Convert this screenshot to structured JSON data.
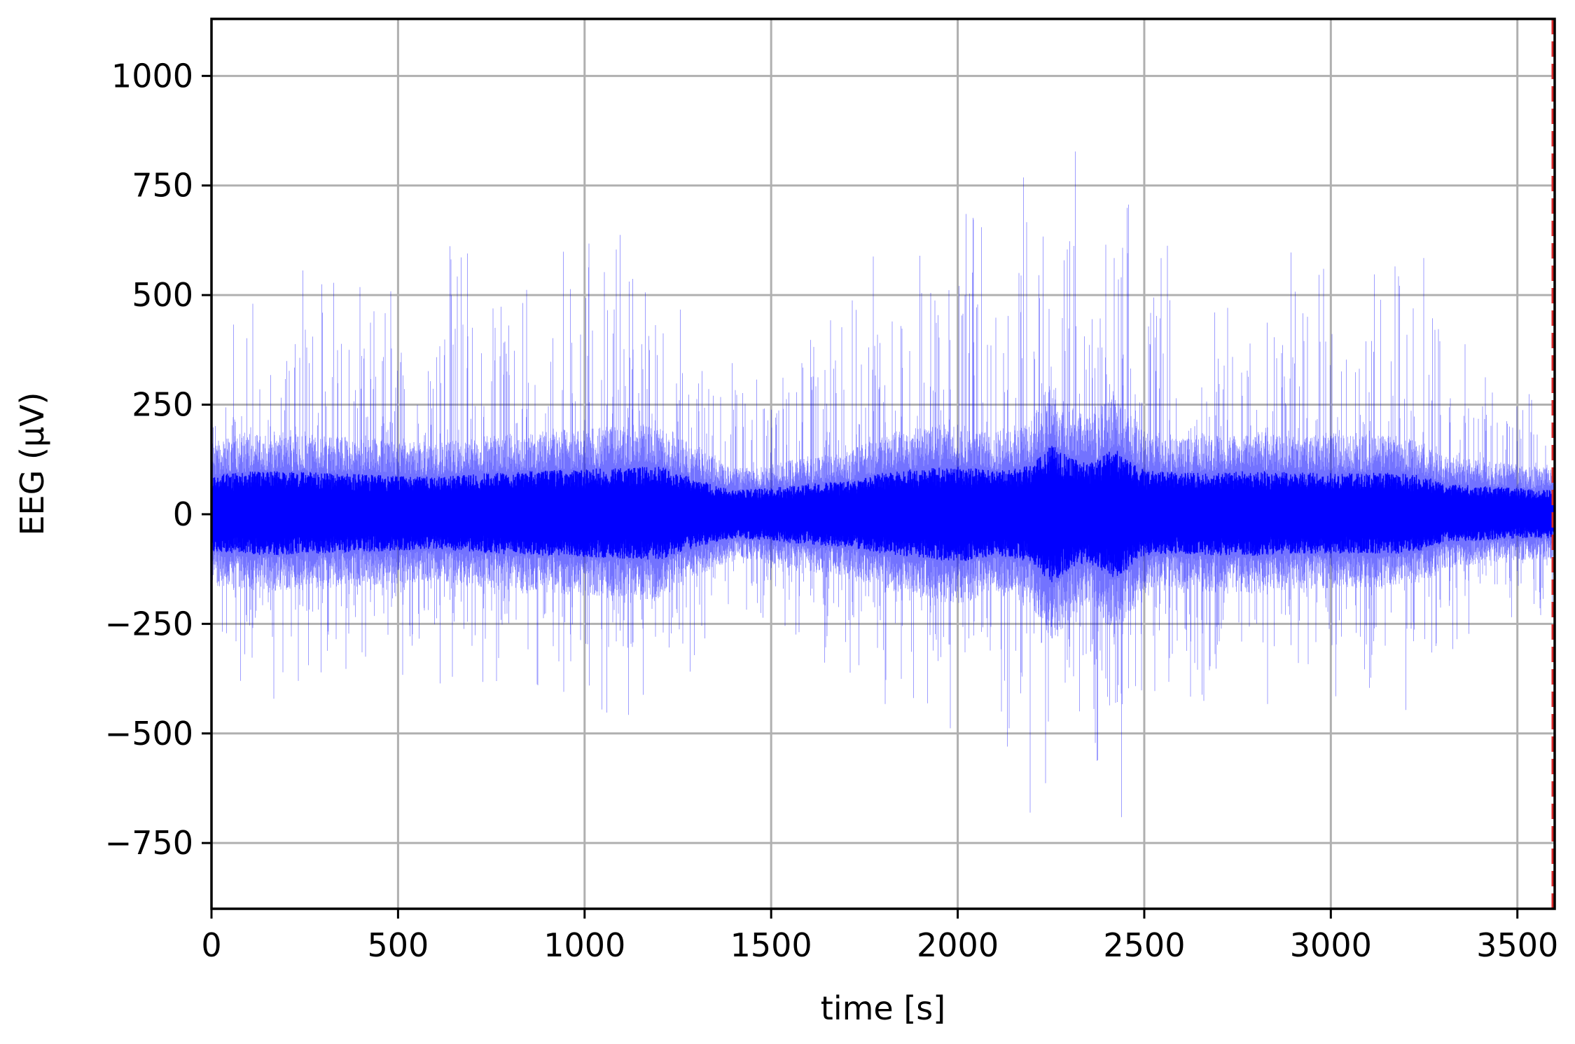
{
  "chart_data": {
    "type": "line",
    "title": "",
    "xlabel": "time [s]",
    "ylabel": "EEG (μV)",
    "xlim": [
      0,
      3600
    ],
    "ylim": [
      -900,
      1130
    ],
    "xticks": [
      0,
      500,
      1000,
      1500,
      2000,
      2500,
      3000,
      3500
    ],
    "yticks": [
      -750,
      -500,
      -250,
      0,
      250,
      500,
      750,
      1000
    ],
    "xtick_labels": [
      "0",
      "500",
      "1000",
      "1500",
      "2000",
      "2500",
      "3000",
      "3500"
    ],
    "ytick_labels": [
      "−750",
      "−500",
      "−250",
      "0",
      "250",
      "500",
      "750",
      "1000"
    ],
    "grid": true,
    "series": [
      {
        "color": "#0000ff",
        "envelope": {
          "x": [
            0,
            150,
            300,
            450,
            600,
            750,
            900,
            1050,
            1200,
            1300,
            1400,
            1500,
            1600,
            1700,
            1800,
            1900,
            2000,
            2100,
            2200,
            2250,
            2300,
            2350,
            2420,
            2500,
            2600,
            2700,
            2800,
            2900,
            3000,
            3100,
            3200,
            3260,
            3300,
            3400,
            3500,
            3600
          ],
          "core_upper": [
            90,
            100,
            95,
            90,
            85,
            95,
            100,
            105,
            110,
            80,
            55,
            60,
            70,
            75,
            95,
            105,
            110,
            100,
            115,
            160,
            130,
            115,
            150,
            100,
            95,
            95,
            100,
            95,
            95,
            95,
            95,
            85,
            70,
            65,
            60,
            55
          ],
          "core_lower": [
            -85,
            -95,
            -90,
            -85,
            -80,
            -90,
            -95,
            -100,
            -105,
            -75,
            -55,
            -60,
            -70,
            -75,
            -90,
            -100,
            -110,
            -95,
            -110,
            -160,
            -125,
            -110,
            -150,
            -95,
            -90,
            -95,
            -95,
            -90,
            -90,
            -90,
            -90,
            -80,
            -65,
            -60,
            -55,
            -55
          ],
          "spike_upper": [
            450,
            500,
            600,
            550,
            620,
            650,
            600,
            700,
            560,
            450,
            350,
            350,
            450,
            500,
            650,
            700,
            760,
            650,
            950,
            700,
            1030,
            650,
            800,
            700,
            600,
            550,
            560,
            600,
            600,
            580,
            650,
            750,
            450,
            350,
            300,
            300
          ],
          "spike_lower": [
            -350,
            -450,
            -380,
            -350,
            -400,
            -380,
            -400,
            -480,
            -470,
            -380,
            -260,
            -250,
            -300,
            -400,
            -490,
            -480,
            -560,
            -450,
            -740,
            -580,
            -600,
            -480,
            -810,
            -400,
            -450,
            -450,
            -460,
            -470,
            -460,
            -460,
            -450,
            -380,
            -380,
            -250,
            -250,
            -220
          ]
        }
      },
      {
        "color": "#d62728",
        "dashed_vline_x": 3600
      }
    ]
  }
}
